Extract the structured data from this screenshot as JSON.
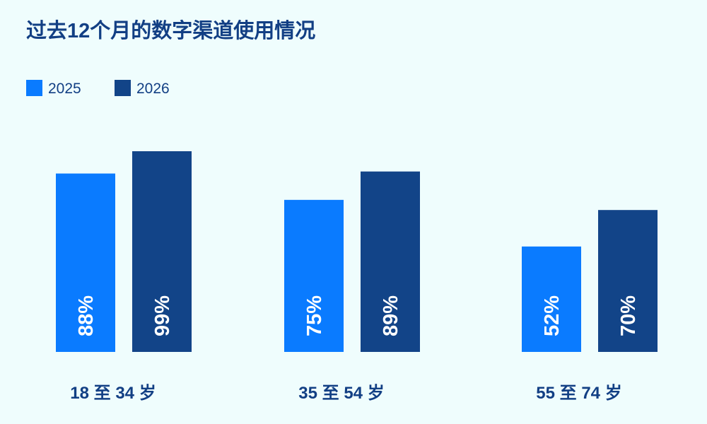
{
  "chart_data": {
    "type": "bar",
    "title": "过去12个月的数字渠道使用情况",
    "categories": [
      "18 至 34 岁",
      "35 至 54 岁",
      "55 至 74 岁"
    ],
    "series": [
      {
        "name": "2025",
        "color": "#0a7bff",
        "values": [
          88,
          75,
          52
        ],
        "value_labels": [
          "88%",
          "75%",
          "52%"
        ]
      },
      {
        "name": "2026",
        "color": "#124488",
        "values": [
          99,
          89,
          70
        ],
        "value_labels": [
          "99%",
          "89%",
          "70%"
        ]
      }
    ],
    "legend": "top-left"
  }
}
